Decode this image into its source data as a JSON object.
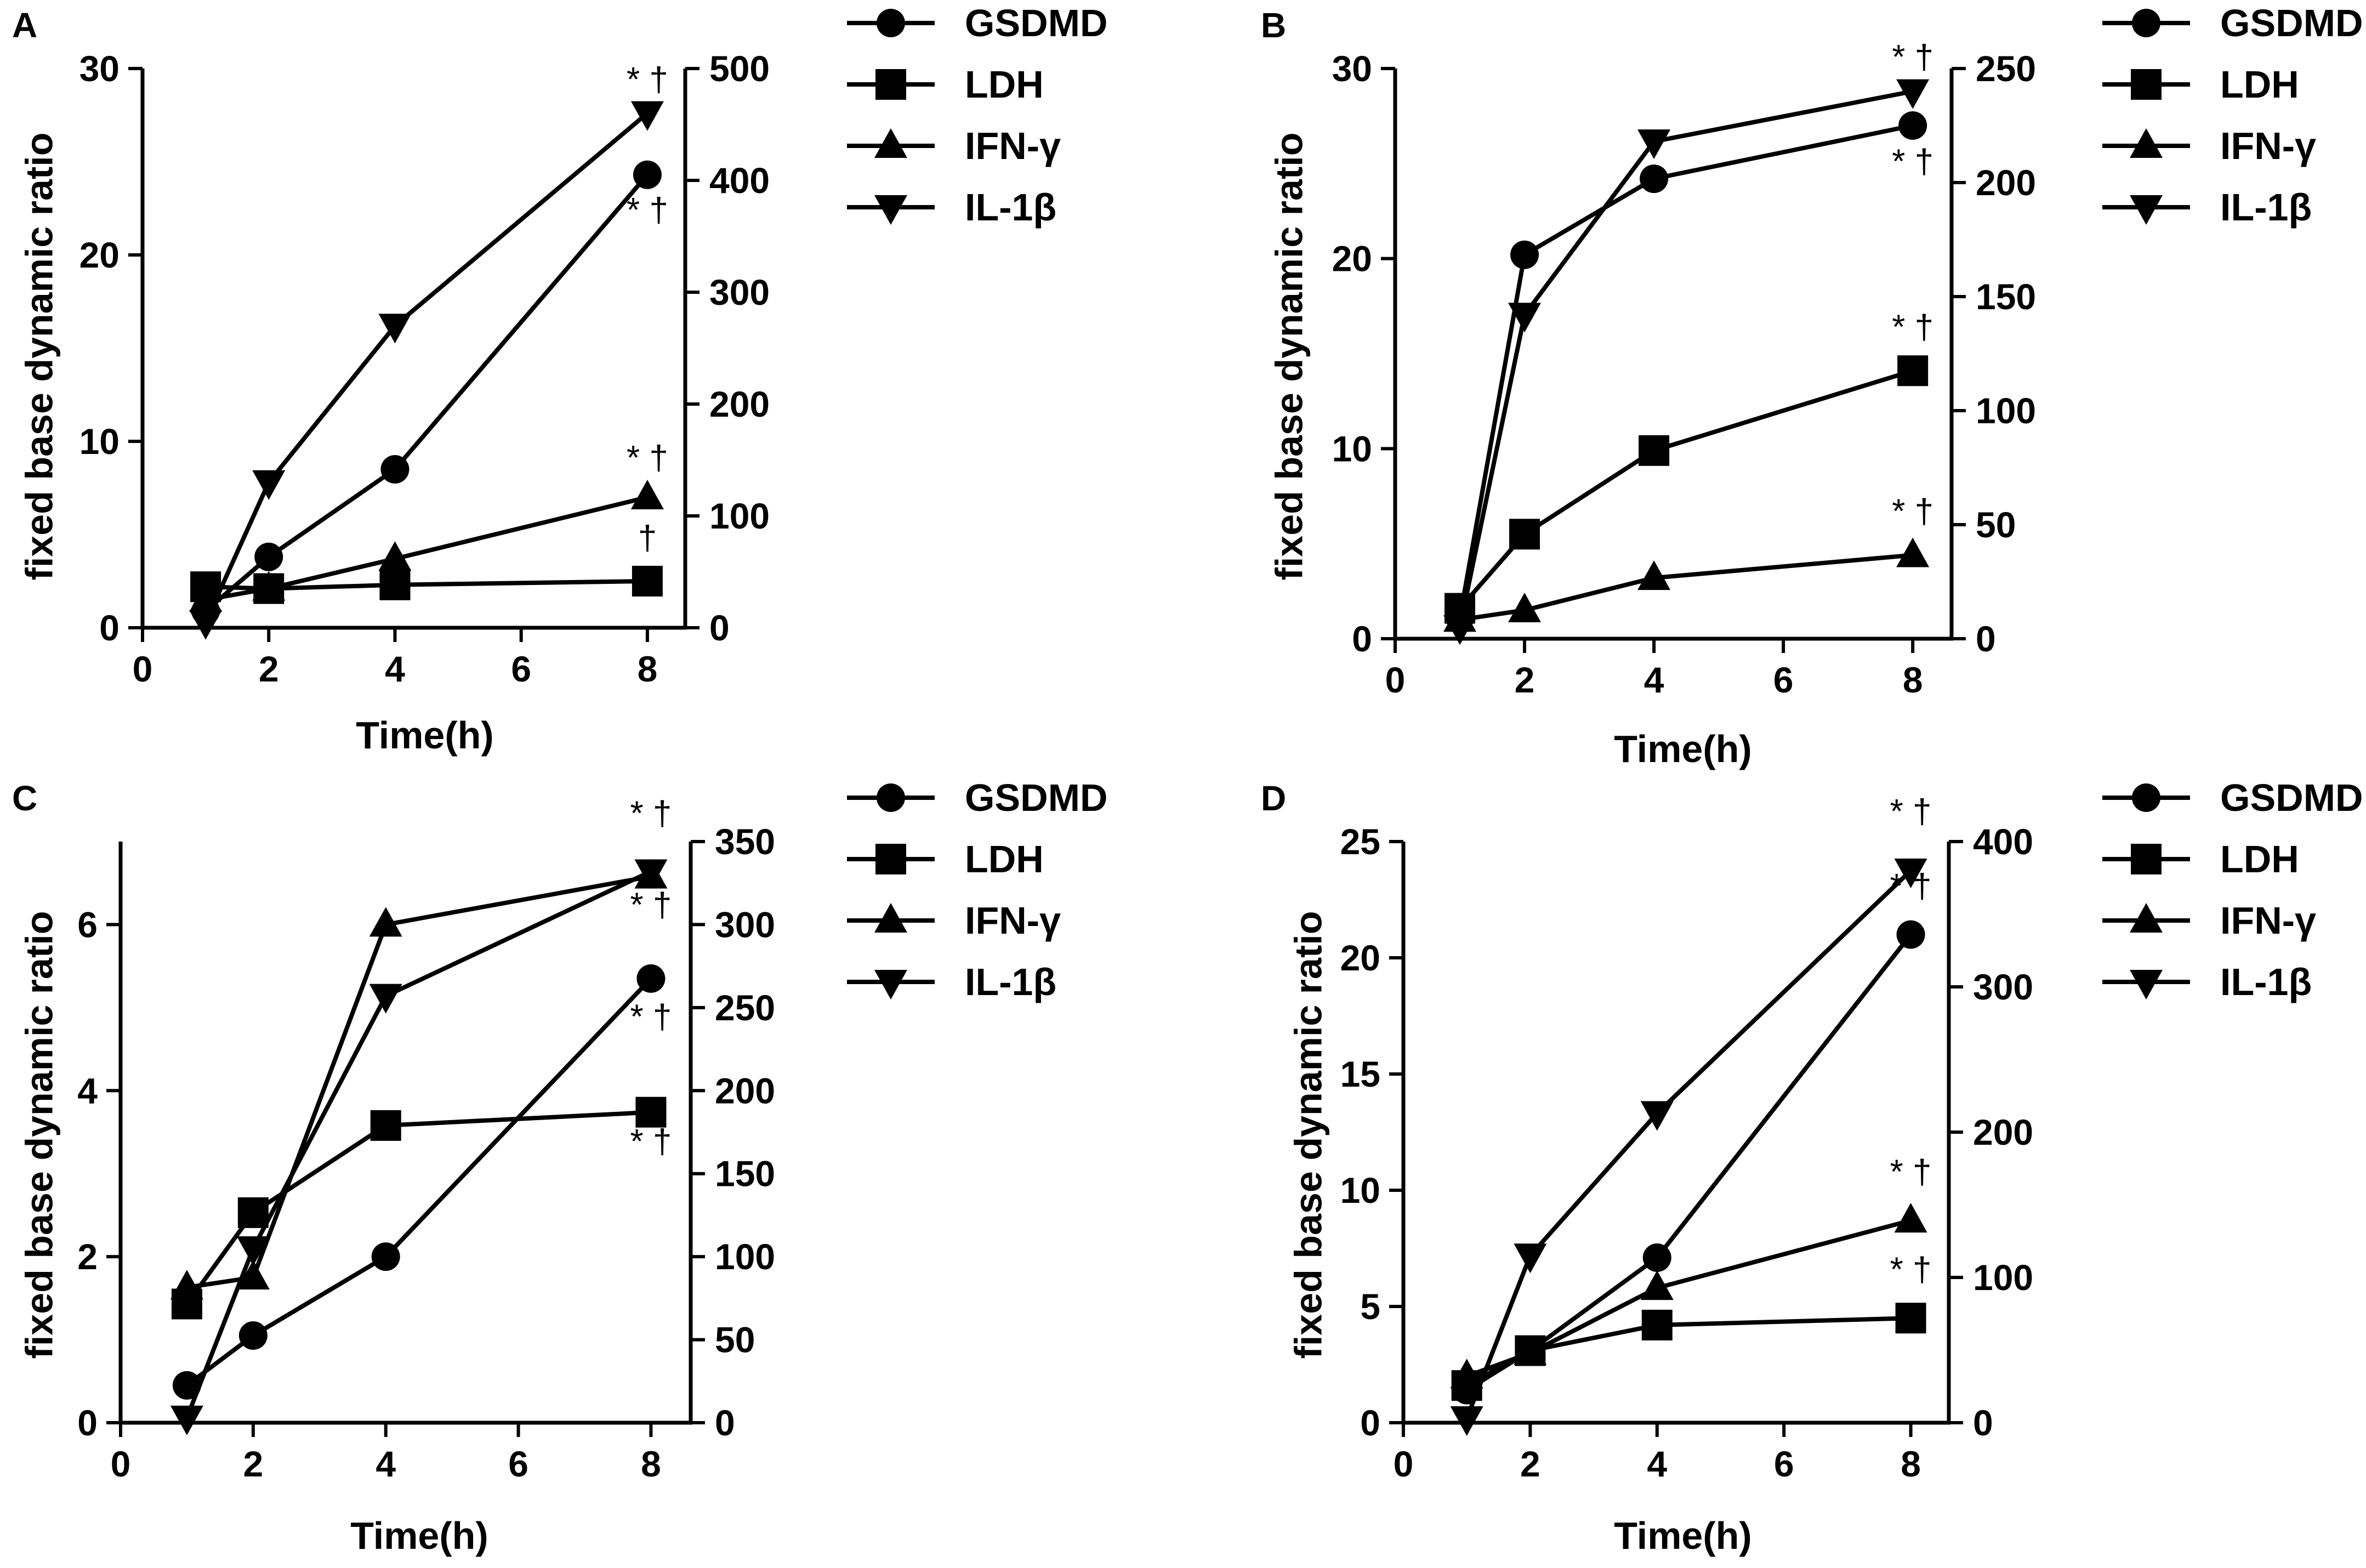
{
  "chart_data": [
    {
      "panel": "A",
      "type": "line",
      "xlabel": "Time(h)",
      "ylabel": "fixed base dynamic ratio",
      "x_ticks": [
        "0",
        "2",
        "4",
        "6",
        "8"
      ],
      "xlim": [
        0,
        8.6
      ],
      "ylim_left": [
        0,
        30
      ],
      "y_ticks_left": [
        "0",
        "10",
        "20",
        "30"
      ],
      "ylim_right": [
        0,
        500
      ],
      "y_ticks_right": [
        "0",
        "100",
        "200",
        "300",
        "400",
        "500"
      ],
      "legend": [
        "GSDMD",
        "LDH",
        "IFN-γ",
        "IL-1β"
      ],
      "series": [
        {
          "name": "GSDMD",
          "marker": "circle",
          "axis": "left",
          "x": [
            1,
            2,
            4,
            8
          ],
          "values": [
            0.9,
            3.8,
            8.5,
            24.3
          ]
        },
        {
          "name": "LDH",
          "marker": "square",
          "axis": "left",
          "x": [
            1,
            2,
            4,
            8
          ],
          "values": [
            2.2,
            2.1,
            2.3,
            2.5
          ]
        },
        {
          "name": "IFN-γ",
          "marker": "triangle",
          "axis": "left",
          "x": [
            1,
            2,
            4,
            8
          ],
          "values": [
            1.5,
            2.1,
            3.7,
            7.0
          ]
        },
        {
          "name": "IL-1β",
          "marker": "triangle-down",
          "axis": "right",
          "x": [
            1,
            2,
            4,
            8
          ],
          "values": [
            5,
            130,
            270,
            460
          ]
        }
      ],
      "annotations": [
        {
          "text": "* †",
          "x": 8,
          "y": 28.8
        },
        {
          "text": "* †",
          "x": 8,
          "y": 21.8
        },
        {
          "text": "* †",
          "x": 8,
          "y": 8.5
        },
        {
          "text": "†",
          "x": 8,
          "y": 4.2
        }
      ]
    },
    {
      "panel": "B",
      "type": "line",
      "xlabel": "Time(h)",
      "ylabel": "fixed base dynamic ratio",
      "x_ticks": [
        "0",
        "2",
        "4",
        "6",
        "8"
      ],
      "xlim": [
        0,
        8.6
      ],
      "ylim_left": [
        0,
        30
      ],
      "y_ticks_left": [
        "0",
        "10",
        "20",
        "30"
      ],
      "ylim_right": [
        0,
        250
      ],
      "y_ticks_right": [
        "0",
        "50",
        "100",
        "150",
        "200",
        "250"
      ],
      "legend": [
        "GSDMD",
        "LDH",
        "IFN-γ",
        "IL-1β"
      ],
      "series": [
        {
          "name": "GSDMD",
          "marker": "circle",
          "axis": "left",
          "x": [
            1,
            2,
            4,
            8
          ],
          "values": [
            1.1,
            20.2,
            24.2,
            27.0
          ]
        },
        {
          "name": "LDH",
          "marker": "square",
          "axis": "left",
          "x": [
            1,
            2,
            4,
            8
          ],
          "values": [
            1.6,
            5.5,
            9.9,
            14.1
          ]
        },
        {
          "name": "IFN-γ",
          "marker": "triangle",
          "axis": "left",
          "x": [
            1,
            2,
            4,
            8
          ],
          "values": [
            1.0,
            1.5,
            3.2,
            4.4
          ]
        },
        {
          "name": "IL-1β",
          "marker": "triangle-down",
          "axis": "right",
          "x": [
            1,
            2,
            4,
            8
          ],
          "values": [
            5,
            142,
            218,
            240
          ]
        }
      ],
      "annotations": [
        {
          "text": "* †",
          "x": 8,
          "y": 30.0
        },
        {
          "text": "* †",
          "x": 8,
          "y": 24.5
        },
        {
          "text": "* †",
          "x": 8,
          "y": 15.8
        },
        {
          "text": "* †",
          "x": 8,
          "y": 6.1
        }
      ]
    },
    {
      "panel": "C",
      "type": "line",
      "xlabel": "Time(h)",
      "ylabel": "fixed base dynamic ratio",
      "x_ticks": [
        "0",
        "2",
        "4",
        "6",
        "8"
      ],
      "xlim": [
        0,
        8.6
      ],
      "ylim_left": [
        0,
        7
      ],
      "y_ticks_left": [
        "0",
        "2",
        "4",
        "6"
      ],
      "ylim_right": [
        0,
        350
      ],
      "y_ticks_right": [
        "0",
        "50",
        "100",
        "150",
        "200",
        "250",
        "300",
        "350"
      ],
      "legend": [
        "GSDMD",
        "LDH",
        "IFN-γ",
        "IL-1β"
      ],
      "series": [
        {
          "name": "GSDMD",
          "marker": "circle",
          "axis": "left",
          "x": [
            1,
            2,
            4,
            8
          ],
          "values": [
            0.45,
            1.05,
            2.0,
            5.35
          ]
        },
        {
          "name": "LDH",
          "marker": "square",
          "axis": "left",
          "x": [
            1,
            2,
            4,
            8
          ],
          "values": [
            1.43,
            2.53,
            3.58,
            3.74
          ]
        },
        {
          "name": "IFN-γ",
          "marker": "triangle",
          "axis": "left",
          "x": [
            1,
            2,
            4,
            8
          ],
          "values": [
            1.63,
            1.75,
            6.0,
            6.58
          ]
        },
        {
          "name": "IL-1β",
          "marker": "triangle-down",
          "axis": "right",
          "x": [
            1,
            2,
            4,
            8
          ],
          "values": [
            3,
            105,
            257,
            332
          ]
        }
      ],
      "annotations": [
        {
          "text": "* †",
          "x": 8,
          "y": 7.2
        },
        {
          "text": "* †",
          "x": 8,
          "y": 6.1
        },
        {
          "text": "* †",
          "x": 8,
          "y": 4.75
        },
        {
          "text": "* †",
          "x": 8,
          "y": 3.25
        }
      ]
    },
    {
      "panel": "D",
      "type": "line",
      "xlabel": "Time(h)",
      "ylabel": "fixed base dynamic ratio",
      "x_ticks": [
        "0",
        "2",
        "4",
        "6",
        "8"
      ],
      "xlim": [
        0,
        8.6
      ],
      "ylim_left": [
        0,
        25
      ],
      "y_ticks_left": [
        "0",
        "5",
        "10",
        "15",
        "20",
        "25"
      ],
      "ylim_right": [
        0,
        400
      ],
      "y_ticks_right": [
        "0",
        "100",
        "200",
        "300",
        "400"
      ],
      "legend": [
        "GSDMD",
        "LDH",
        "IFN-γ",
        "IL-1β"
      ],
      "series": [
        {
          "name": "GSDMD",
          "marker": "circle",
          "axis": "left",
          "x": [
            1,
            2,
            4,
            8
          ],
          "values": [
            1.4,
            3.1,
            7.1,
            21.0
          ]
        },
        {
          "name": "LDH",
          "marker": "square",
          "axis": "left",
          "x": [
            1,
            2,
            4,
            8
          ],
          "values": [
            1.6,
            3.1,
            4.2,
            4.5
          ]
        },
        {
          "name": "IFN-γ",
          "marker": "triangle",
          "axis": "left",
          "x": [
            1,
            2,
            4,
            8
          ],
          "values": [
            2.0,
            3.0,
            5.8,
            8.7
          ]
        },
        {
          "name": "IL-1β",
          "marker": "triangle-down",
          "axis": "right",
          "x": [
            1,
            2,
            4,
            8
          ],
          "values": [
            3,
            115,
            213,
            380
          ]
        }
      ],
      "annotations": [
        {
          "text": "* †",
          "x": 8,
          "y": 25.8
        },
        {
          "text": "* †",
          "x": 8,
          "y": 22.6
        },
        {
          "text": "* †",
          "x": 8,
          "y": 10.3
        },
        {
          "text": "* †",
          "x": 8,
          "y": 6.1
        }
      ]
    }
  ]
}
